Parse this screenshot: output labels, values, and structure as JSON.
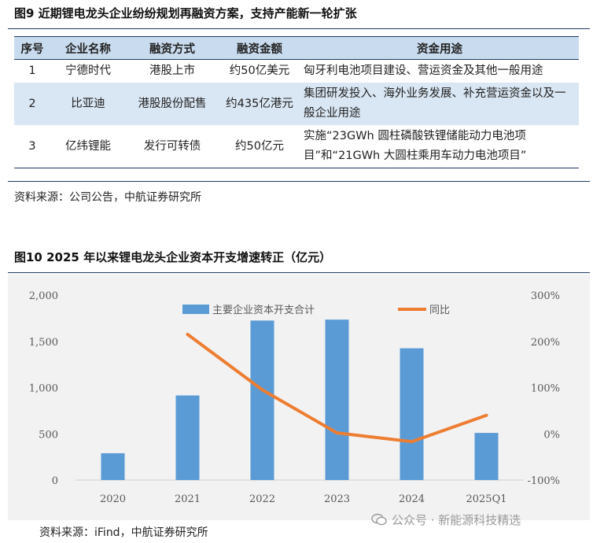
{
  "figure9": {
    "title": "图9  近期锂电龙头企业纷纷规划再融资方案，支持产能新一轮扩张",
    "headers": [
      "序号",
      "企业名称",
      "融资方式",
      "融资金额",
      "资金用途"
    ],
    "rows": [
      [
        "1",
        "宁德时代",
        "港股上市",
        "约50亿美元",
        "匈牙利电池项目建设、营运资金及其他一般用途"
      ],
      [
        "2",
        "比亚迪",
        "港股股份配售",
        "约435亿港元",
        "集团研发投入、海外业务发展、补充营运资金以及一般企业用途"
      ],
      [
        "3",
        "亿纬锂能",
        "发行可转债",
        "约50亿元",
        "实施“23GWh 圆柱磷酸铁锂储能动力电池项目”和“21GWh 大圆柱乘用车动力电池项目”"
      ]
    ],
    "source": "资料来源：公司公告，中航证券研究所"
  },
  "figure10": {
    "title": "图10  2025 年以来锂电龙头企业资本开支增速转正（亿元）",
    "source": "资料来源：iFind，中航证券研究所"
  },
  "chart_data": {
    "type": "bar",
    "categories": [
      "2020",
      "2021",
      "2022",
      "2023",
      "2024",
      "2025Q1"
    ],
    "series": [
      {
        "name": "主要企业资本开支合计",
        "type": "bar",
        "axis": "left",
        "color": "#5b9bd5",
        "values": [
          290,
          915,
          1725,
          1735,
          1425,
          510
        ]
      },
      {
        "name": "同比",
        "type": "line",
        "axis": "right",
        "color": "#ed7d31",
        "values": [
          null,
          215,
          95,
          2,
          -17,
          40
        ]
      }
    ],
    "y_left": {
      "ylim": [
        0,
        2000
      ],
      "ticks": [
        0,
        500,
        1000,
        1500,
        2000
      ],
      "tick_labels": [
        "0",
        "500",
        "1,000",
        "1,500",
        "2,000"
      ]
    },
    "y_right": {
      "ylim": [
        -100,
        300
      ],
      "ticks": [
        -100,
        0,
        100,
        200,
        300
      ],
      "tick_labels": [
        "-100%",
        "0%",
        "100%",
        "200%",
        "300%"
      ]
    },
    "legend_position": "top",
    "grid": false
  },
  "watermark": {
    "text": "公众号 · 新能源科技精选",
    "icon": "wechat-icon"
  }
}
